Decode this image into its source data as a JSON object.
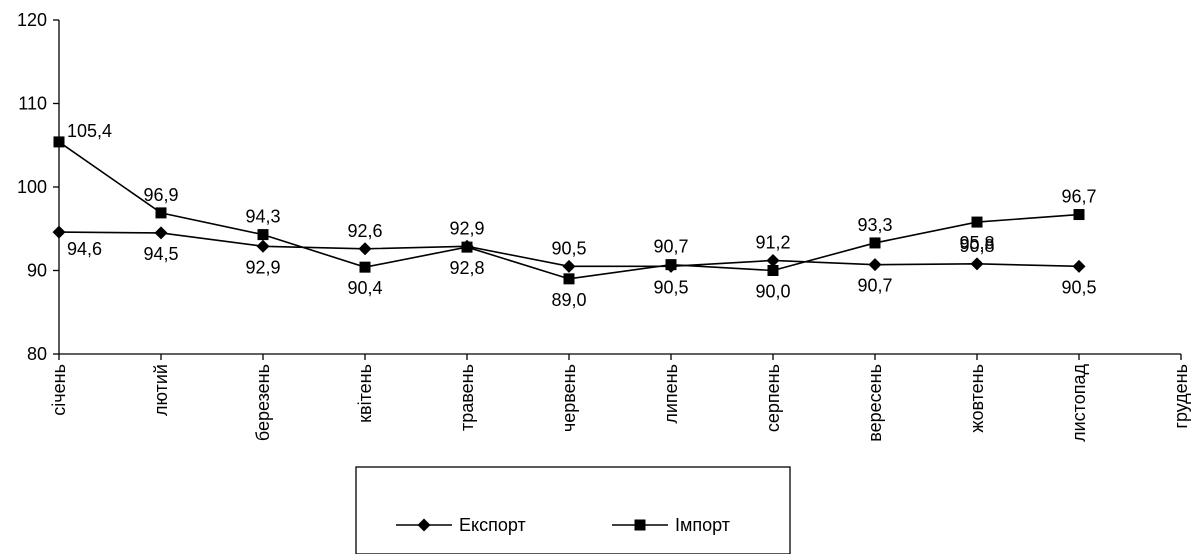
{
  "chart_data": {
    "type": "line",
    "title": "",
    "xlabel": "",
    "ylabel": "",
    "categories": [
      "січень",
      "лютий",
      "березень",
      "квітень",
      "травень",
      "червень",
      "липень",
      "серпень",
      "вересень",
      "жовтень",
      "листопад",
      "грудень"
    ],
    "ylim": [
      80,
      120
    ],
    "yticks": [
      80,
      90,
      100,
      110,
      120
    ],
    "grid": false,
    "legend_position": "bottom",
    "series": [
      {
        "name": "Експорт",
        "marker": "diamond",
        "color": "#000000",
        "values": [
          94.6,
          94.5,
          92.9,
          92.6,
          92.9,
          90.5,
          90.5,
          91.2,
          90.7,
          90.8,
          90.5,
          null
        ],
        "labels": [
          "94,6",
          "94,5",
          "92,9",
          "92,6",
          "92,9",
          "90,5",
          "90,5",
          "91,2",
          "90,7",
          "90,8",
          "90,5",
          null
        ],
        "label_positions": [
          "below",
          "below",
          "below",
          "above",
          "above",
          "above",
          "below",
          "above",
          "below",
          "above",
          "below",
          null
        ]
      },
      {
        "name": "Імпорт",
        "marker": "square",
        "color": "#000000",
        "values": [
          105.4,
          96.9,
          94.3,
          90.4,
          92.8,
          89.0,
          90.7,
          90.0,
          93.3,
          95.8,
          96.7,
          null
        ],
        "labels": [
          "105,4",
          "96,9",
          "94,3",
          "90,4",
          "92,8",
          "89,0",
          "90,7",
          "90,0",
          "93,3",
          "95,8",
          "96,7",
          null
        ],
        "label_positions": [
          "right",
          "above",
          "above",
          "below",
          "below",
          "below",
          "above",
          "below",
          "above",
          "below",
          "above",
          null
        ]
      }
    ]
  }
}
